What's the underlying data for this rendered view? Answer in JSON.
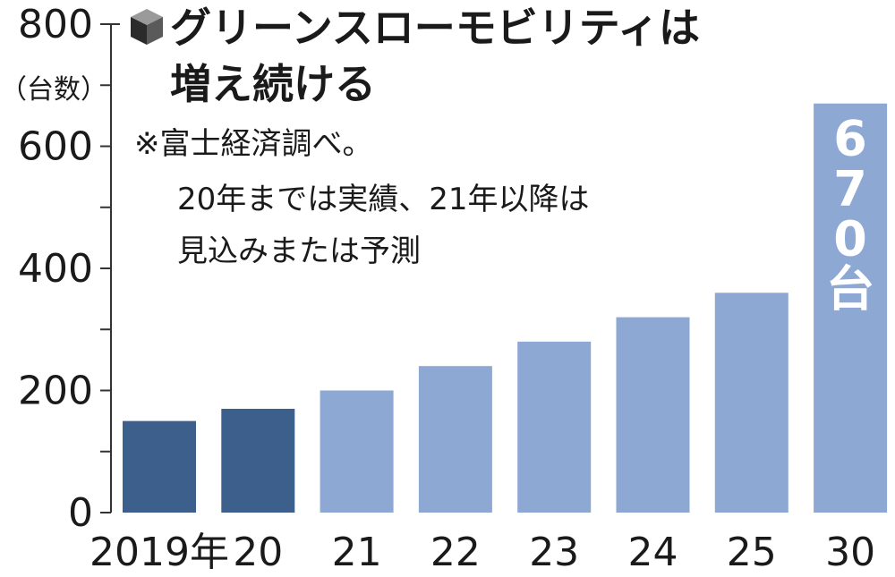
{
  "chart_data": {
    "type": "bar",
    "title_lines": [
      "グリーンスローモビリティは",
      "増え続ける"
    ],
    "unit": "（台数）",
    "note_lines": [
      "※富士経済調べ。",
      "20年までは実績、21年以降は",
      "見込みまたは予測"
    ],
    "categories": [
      "2019年",
      "20",
      "21",
      "22",
      "23",
      "24",
      "25",
      "30"
    ],
    "values": [
      150,
      170,
      200,
      240,
      280,
      320,
      360,
      670
    ],
    "actual_count": 2,
    "colors": {
      "actual": "#3d5f8c",
      "forecast": "#8ea8d4"
    },
    "ylim": [
      0,
      800
    ],
    "yticks": [
      "0",
      "200",
      "400",
      "600",
      "800"
    ],
    "value_label": {
      "category": "30",
      "text": "670台"
    },
    "grid": false
  }
}
